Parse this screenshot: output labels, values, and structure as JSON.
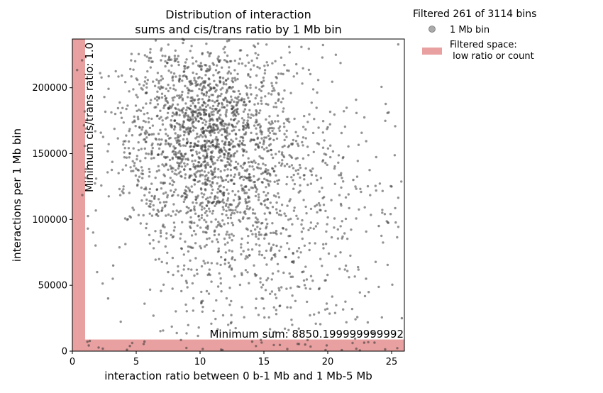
{
  "chart_data": {
    "type": "scatter",
    "title_line1": "Distribution of interaction",
    "title_line2": "sums and cis/trans ratio by 1 Mb bin",
    "xlabel": "interaction ratio between 0 b-1 Mb and 1 Mb-5 Mb",
    "ylabel": "interactions per 1 Mb bin",
    "xlim": [
      0,
      26
    ],
    "ylim": [
      0,
      237000
    ],
    "xticks": [
      0,
      5,
      10,
      15,
      20,
      25
    ],
    "xtick_labels": [
      "0",
      "5",
      "10",
      "15",
      "20",
      "25"
    ],
    "yticks": [
      0,
      50000,
      100000,
      150000,
      200000
    ],
    "ytick_labels": [
      "0",
      "50000",
      "100000",
      "150000",
      "200000"
    ],
    "grid": false,
    "legend_placement": "outside top-right",
    "legend": {
      "header": "Filtered 261 of 3114 bins",
      "point_label": "1 Mb bin",
      "region_label_line1": "Filtered space:",
      "region_label_line2": " low ratio or count"
    },
    "thresholds": {
      "min_ratio": 1.0,
      "min_sum": 8850.199999999992,
      "min_ratio_label": "Minimum cis/trans ratio: 1.0",
      "min_sum_label": "Minimum sum: 8850.199999999992"
    },
    "series": [
      {
        "name": "1 Mb bin",
        "point_count_estimate": 3114,
        "x_range_observed": [
          0,
          26
        ],
        "y_range_observed": [
          0,
          237000
        ],
        "sample_points": [
          [
            2.8,
            40000
          ],
          [
            3.2,
            65000
          ],
          [
            4.0,
            120000
          ],
          [
            4.5,
            150000
          ],
          [
            5.5,
            170000
          ],
          [
            6.0,
            110000
          ],
          [
            7.0,
            200000
          ],
          [
            7.5,
            60000
          ],
          [
            8.0,
            175000
          ],
          [
            8.5,
            150000
          ],
          [
            9.0,
            215000
          ],
          [
            9.5,
            130000
          ],
          [
            10.0,
            185000
          ],
          [
            10.5,
            90000
          ],
          [
            11.0,
            160000
          ],
          [
            11.5,
            220000
          ],
          [
            12.0,
            140000
          ],
          [
            12.5,
            70000
          ],
          [
            13.0,
            180000
          ],
          [
            13.5,
            120000
          ],
          [
            14.0,
            195000
          ],
          [
            14.5,
            100000
          ],
          [
            15.0,
            160000
          ],
          [
            16.0,
            80000
          ],
          [
            17.0,
            140000
          ],
          [
            18.0,
            60000
          ],
          [
            19.0,
            110000
          ],
          [
            20.0,
            170000
          ],
          [
            21.0,
            75000
          ],
          [
            22.0,
            130000
          ],
          [
            23.0,
            55000
          ],
          [
            24.0,
            95000
          ],
          [
            25.0,
            125000
          ],
          [
            25.8,
            25000
          ]
        ]
      }
    ],
    "colors": {
      "points": "#3a3a3a",
      "filtered_region": "#e8a0a0",
      "legend_marker": "#aaaaaa"
    }
  }
}
